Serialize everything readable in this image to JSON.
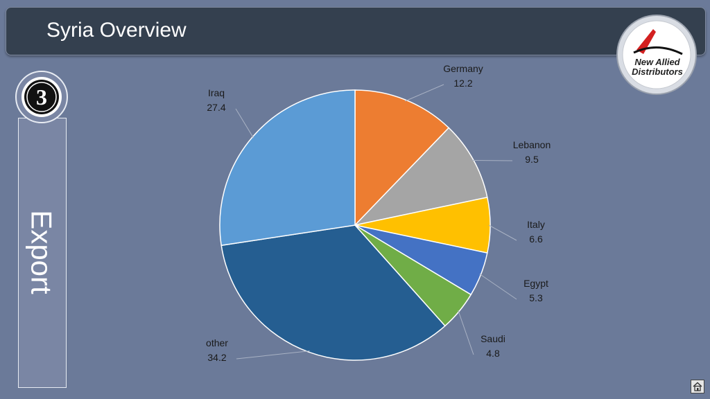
{
  "header": {
    "title": "Syria Overview"
  },
  "logo": {
    "line1": "New Allied",
    "line2": "Distributors"
  },
  "section": {
    "number": "3",
    "label": "Export"
  },
  "chart_data": {
    "type": "pie",
    "categories": [
      "Germany",
      "Lebanon",
      "Italy",
      "Egypt",
      "Saudi",
      "other",
      "Iraq"
    ],
    "values": [
      12.2,
      9.5,
      6.6,
      5.3,
      4.8,
      34.2,
      27.4
    ],
    "colors": [
      "#ed7d31",
      "#a5a5a5",
      "#ffc000",
      "#4472c4",
      "#70ad47",
      "#255e91",
      "#5b9bd5"
    ],
    "title": "",
    "start": "12 o'clock",
    "direction": "clockwise",
    "data_labels": "category and value, outside with leader lines"
  },
  "icons": {
    "home": "home-icon"
  }
}
